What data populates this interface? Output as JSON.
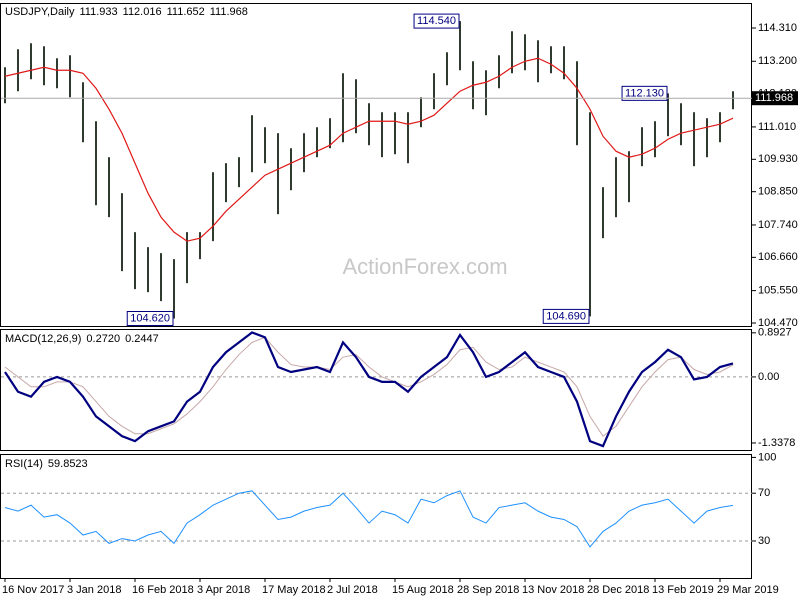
{
  "chart_data": [
    {
      "type": "ohlc",
      "title": "USDJPY,Daily",
      "last_ohlc": [
        111.933,
        112.016,
        111.652,
        111.968
      ],
      "watermark": "ActionForex.com",
      "categories": [
        "16 Nov 2017",
        null,
        null,
        null,
        null,
        "3 Jan 2018",
        null,
        null,
        null,
        null,
        "16 Feb 2018",
        null,
        null,
        null,
        null,
        "3 Apr 2018",
        null,
        null,
        null,
        null,
        "17 May 2018",
        null,
        null,
        null,
        null,
        "2 Jul 2018",
        null,
        null,
        null,
        null,
        "15 Aug 2018",
        null,
        null,
        null,
        null,
        "28 Sep 2018",
        null,
        null,
        null,
        null,
        "13 Nov 2018",
        null,
        null,
        null,
        null,
        "28 Dec 2018",
        null,
        null,
        null,
        null,
        "13 Feb 2019",
        null,
        null,
        null,
        null,
        "29 Mar 2019",
        null
      ],
      "high": [
        113.0,
        113.6,
        113.8,
        113.7,
        113.3,
        113.4,
        112.5,
        111.2,
        110.0,
        108.8,
        107.5,
        107.0,
        106.8,
        106.6,
        107.5,
        107.5,
        109.5,
        109.8,
        110.0,
        111.4,
        111.0,
        110.8,
        110.3,
        110.8,
        111.0,
        111.3,
        112.8,
        112.6,
        111.8,
        111.5,
        111.5,
        111.5,
        112.0,
        112.8,
        113.5,
        114.54,
        113.2,
        112.9,
        113.4,
        114.2,
        114.1,
        113.9,
        113.7,
        113.7,
        113.2,
        111.5,
        109.0,
        110.0,
        110.2,
        111.0,
        111.2,
        112.13,
        111.8,
        111.5,
        111.3,
        111.5,
        112.2
      ],
      "low": [
        111.8,
        112.2,
        112.6,
        112.4,
        112.3,
        112.0,
        110.5,
        108.4,
        108.0,
        106.2,
        105.6,
        105.5,
        105.2,
        104.62,
        105.8,
        106.6,
        107.2,
        108.5,
        109.0,
        109.5,
        109.8,
        108.1,
        108.9,
        109.5,
        110.0,
        110.3,
        110.5,
        110.8,
        110.4,
        110.0,
        110.1,
        109.8,
        111.0,
        111.6,
        112.4,
        112.9,
        111.6,
        111.4,
        112.3,
        112.8,
        112.9,
        112.5,
        112.8,
        112.6,
        110.4,
        104.69,
        107.3,
        108.0,
        108.5,
        109.7,
        110.0,
        110.7,
        110.4,
        109.7,
        110.0,
        110.5,
        111.6
      ],
      "color": "#2f3b2f",
      "ma": {
        "color": "#e01818",
        "values": [
          112.7,
          112.8,
          112.9,
          113.0,
          112.9,
          112.9,
          112.8,
          112.3,
          111.6,
          110.8,
          109.8,
          108.8,
          108.0,
          107.5,
          107.2,
          107.3,
          107.7,
          108.2,
          108.6,
          109.0,
          109.4,
          109.6,
          109.8,
          110.0,
          110.2,
          110.4,
          110.8,
          111.0,
          111.2,
          111.2,
          111.2,
          111.1,
          111.2,
          111.4,
          111.8,
          112.2,
          112.4,
          112.5,
          112.7,
          113.0,
          113.2,
          113.3,
          113.1,
          112.8,
          112.3,
          111.6,
          110.7,
          110.2,
          110.0,
          110.1,
          110.3,
          110.6,
          110.8,
          110.9,
          111.0,
          111.1,
          111.3
        ]
      },
      "annotations": [
        {
          "value": 114.54,
          "label": "114.540"
        },
        {
          "value": 112.13,
          "label": "112.130"
        },
        {
          "value": 104.62,
          "label": "104.620"
        },
        {
          "value": 104.69,
          "label": "104.690"
        }
      ],
      "ylim": [
        104.37,
        115.11
      ],
      "yticks": [
        {
          "value": 114.31,
          "label": "114.310"
        },
        {
          "value": 113.2,
          "label": "113.200"
        },
        {
          "value": 112.12,
          "label": "112.120"
        },
        {
          "value": 111.01,
          "label": "111.010"
        },
        {
          "value": 109.93,
          "label": "109.930"
        },
        {
          "value": 108.85,
          "label": "108.850"
        },
        {
          "value": 107.74,
          "label": "107.740"
        },
        {
          "value": 106.66,
          "label": "106.660"
        },
        {
          "value": 105.55,
          "label": "105.550"
        },
        {
          "value": 104.47,
          "label": "104.470"
        }
      ],
      "grid": false
    },
    {
      "type": "macd",
      "title": "MACD(12,26,9)",
      "header_values": [
        {
          "value": 0.272,
          "label": "0.2720"
        },
        0.2447
      ],
      "series": [
        {
          "color": "#000080",
          "values": [
            0.1,
            -0.3,
            -0.4,
            -0.1,
            0.0,
            -0.1,
            -0.4,
            -0.8,
            -1.0,
            -1.2,
            -1.3,
            -1.1,
            -1.0,
            -0.9,
            -0.5,
            -0.3,
            0.2,
            0.5,
            0.7,
            0.9,
            0.8,
            0.2,
            0.1,
            0.15,
            0.2,
            0.1,
            0.7,
            0.4,
            0.0,
            -0.1,
            -0.1,
            -0.3,
            0.0,
            0.2,
            0.4,
            0.85,
            0.5,
            0.0,
            0.1,
            0.3,
            0.5,
            0.2,
            0.1,
            0.0,
            -0.5,
            -1.3,
            -1.4,
            -0.8,
            -0.3,
            0.1,
            0.3,
            0.55,
            0.4,
            -0.05,
            0.0,
            0.2,
            0.272
          ]
        },
        {
          "color": "#c8a8a8",
          "values": [
            0.2,
            0.0,
            -0.2,
            -0.2,
            -0.1,
            -0.1,
            -0.2,
            -0.5,
            -0.8,
            -1.0,
            -1.15,
            -1.15,
            -1.05,
            -0.95,
            -0.75,
            -0.5,
            -0.2,
            0.15,
            0.45,
            0.7,
            0.8,
            0.5,
            0.25,
            0.2,
            0.2,
            0.15,
            0.4,
            0.45,
            0.2,
            0.0,
            -0.1,
            -0.2,
            -0.1,
            0.05,
            0.25,
            0.55,
            0.6,
            0.3,
            0.15,
            0.2,
            0.4,
            0.3,
            0.2,
            0.1,
            -0.2,
            -0.8,
            -1.2,
            -1.0,
            -0.6,
            -0.2,
            0.1,
            0.35,
            0.4,
            0.15,
            0.05,
            0.1,
            0.2447
          ]
        }
      ],
      "ylim": [
        -1.48,
        0.95
      ],
      "yticks": [
        0.8927,
        {
          "value": 0,
          "label": "0.00"
        },
        -1.3378
      ],
      "grid": [
        false,
        true,
        false
      ]
    },
    {
      "type": "line",
      "title": "RSI(14)",
      "last_value": 59.8523,
      "color": "#1e90ff",
      "values": [
        58,
        55,
        60,
        50,
        52,
        45,
        35,
        38,
        28,
        32,
        30,
        35,
        38,
        28,
        45,
        52,
        60,
        65,
        70,
        72,
        60,
        48,
        50,
        55,
        58,
        60,
        70,
        58,
        45,
        55,
        52,
        45,
        65,
        62,
        68,
        72,
        50,
        45,
        58,
        60,
        62,
        55,
        50,
        48,
        42,
        25,
        38,
        45,
        55,
        60,
        62,
        65,
        55,
        45,
        55,
        58,
        59.8523
      ],
      "ylim": [
        -1,
        102
      ],
      "yticks": [
        100,
        70,
        30
      ],
      "grid": [
        false,
        true,
        true
      ]
    }
  ]
}
